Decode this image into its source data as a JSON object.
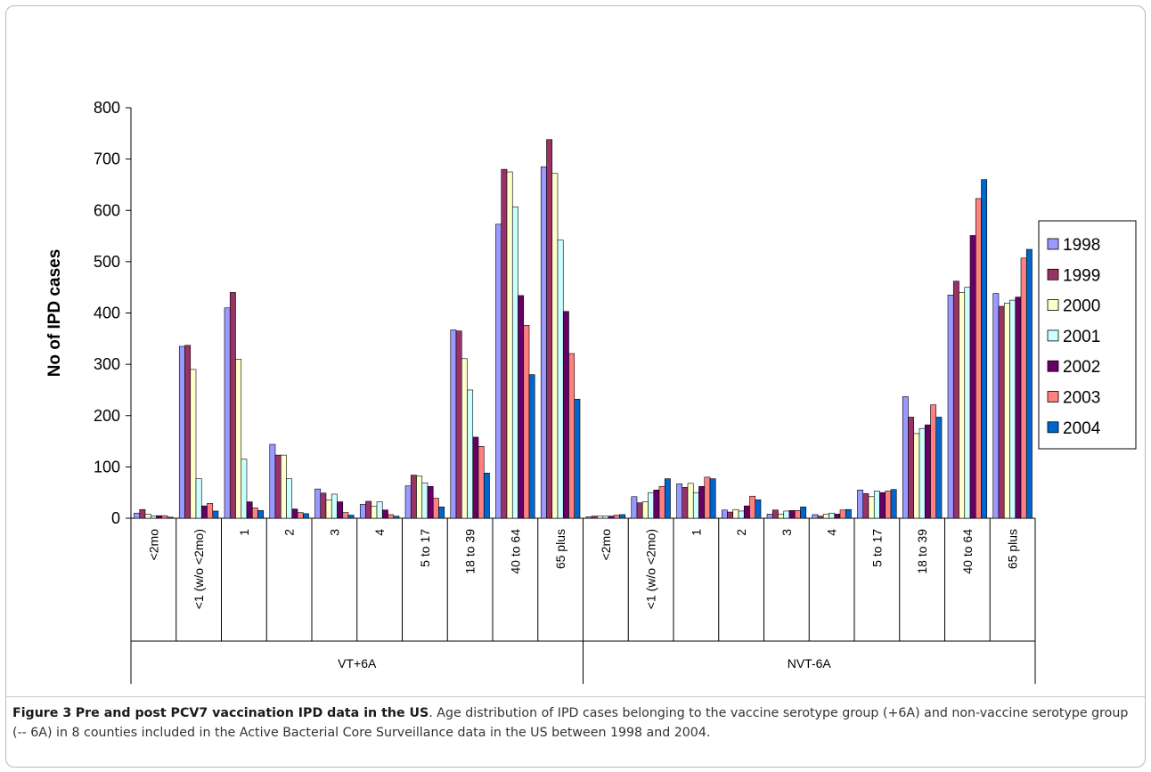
{
  "chart_data": {
    "type": "bar",
    "title": "",
    "xlabel": "",
    "ylabel": "No of IPD cases",
    "ylim": [
      0,
      800
    ],
    "yticks": [
      "0",
      "100",
      "200",
      "300",
      "400",
      "500",
      "600",
      "700",
      "800"
    ],
    "grid": false,
    "legend_position": "right",
    "groups": [
      {
        "label": "VT+6A",
        "categories": [
          "<2mo",
          "<1 (w/o <2mo)",
          "1",
          "2",
          "3",
          "4",
          "5 to 17",
          "18 to 39",
          "40 to 64",
          "65 plus"
        ]
      },
      {
        "label": "NVT-6A",
        "categories": [
          "<2mo",
          "<1 (w/o <2mo)",
          "1",
          "2",
          "3",
          "4",
          "5 to 17",
          "18 to 39",
          "40 to 64",
          "65 plus"
        ]
      }
    ],
    "series": [
      {
        "name": "1998",
        "color": "#9999ff",
        "values": [
          10,
          335,
          410,
          144,
          57,
          27,
          63,
          367,
          573,
          685,
          3,
          42,
          67,
          16,
          8,
          7,
          55,
          237,
          435,
          438
        ]
      },
      {
        "name": "1999",
        "color": "#993366",
        "values": [
          17,
          337,
          440,
          123,
          49,
          33,
          84,
          365,
          680,
          738,
          4,
          30,
          60,
          12,
          16,
          4,
          48,
          197,
          462,
          413
        ]
      },
      {
        "name": "2000",
        "color": "#ffffcc",
        "values": [
          8,
          290,
          310,
          123,
          36,
          23,
          82,
          311,
          675,
          672,
          4,
          32,
          68,
          17,
          8,
          8,
          42,
          165,
          440,
          419
        ]
      },
      {
        "name": "2001",
        "color": "#ccffff",
        "values": [
          4,
          77,
          115,
          77,
          47,
          32,
          69,
          250,
          607,
          542,
          4,
          50,
          50,
          14,
          14,
          10,
          53,
          175,
          450,
          425
        ]
      },
      {
        "name": "2002",
        "color": "#660066",
        "values": [
          5,
          24,
          32,
          18,
          32,
          16,
          62,
          158,
          434,
          403,
          4,
          55,
          62,
          24,
          15,
          8,
          50,
          182,
          551,
          431
        ]
      },
      {
        "name": "2003",
        "color": "#ff8080",
        "values": [
          5,
          29,
          20,
          11,
          11,
          7,
          39,
          140,
          376,
          321,
          6,
          62,
          80,
          43,
          15,
          16,
          53,
          221,
          623,
          507
        ]
      },
      {
        "name": "2004",
        "color": "#0066cc",
        "values": [
          2,
          14,
          15,
          9,
          6,
          4,
          22,
          88,
          280,
          232,
          7,
          77,
          77,
          36,
          22,
          17,
          56,
          197,
          660,
          524
        ]
      }
    ]
  },
  "caption": {
    "label": "Figure 3",
    "title": "Pre and post PCV7 vaccination IPD data in the US",
    "text": ". Age distribution of IPD cases belonging to the vaccine serotype group (+6A) and non-vaccine serotype group (-- 6A) in 8 counties included in the Active Bacterial Core Surveillance data in the US between 1998 and 2004."
  }
}
